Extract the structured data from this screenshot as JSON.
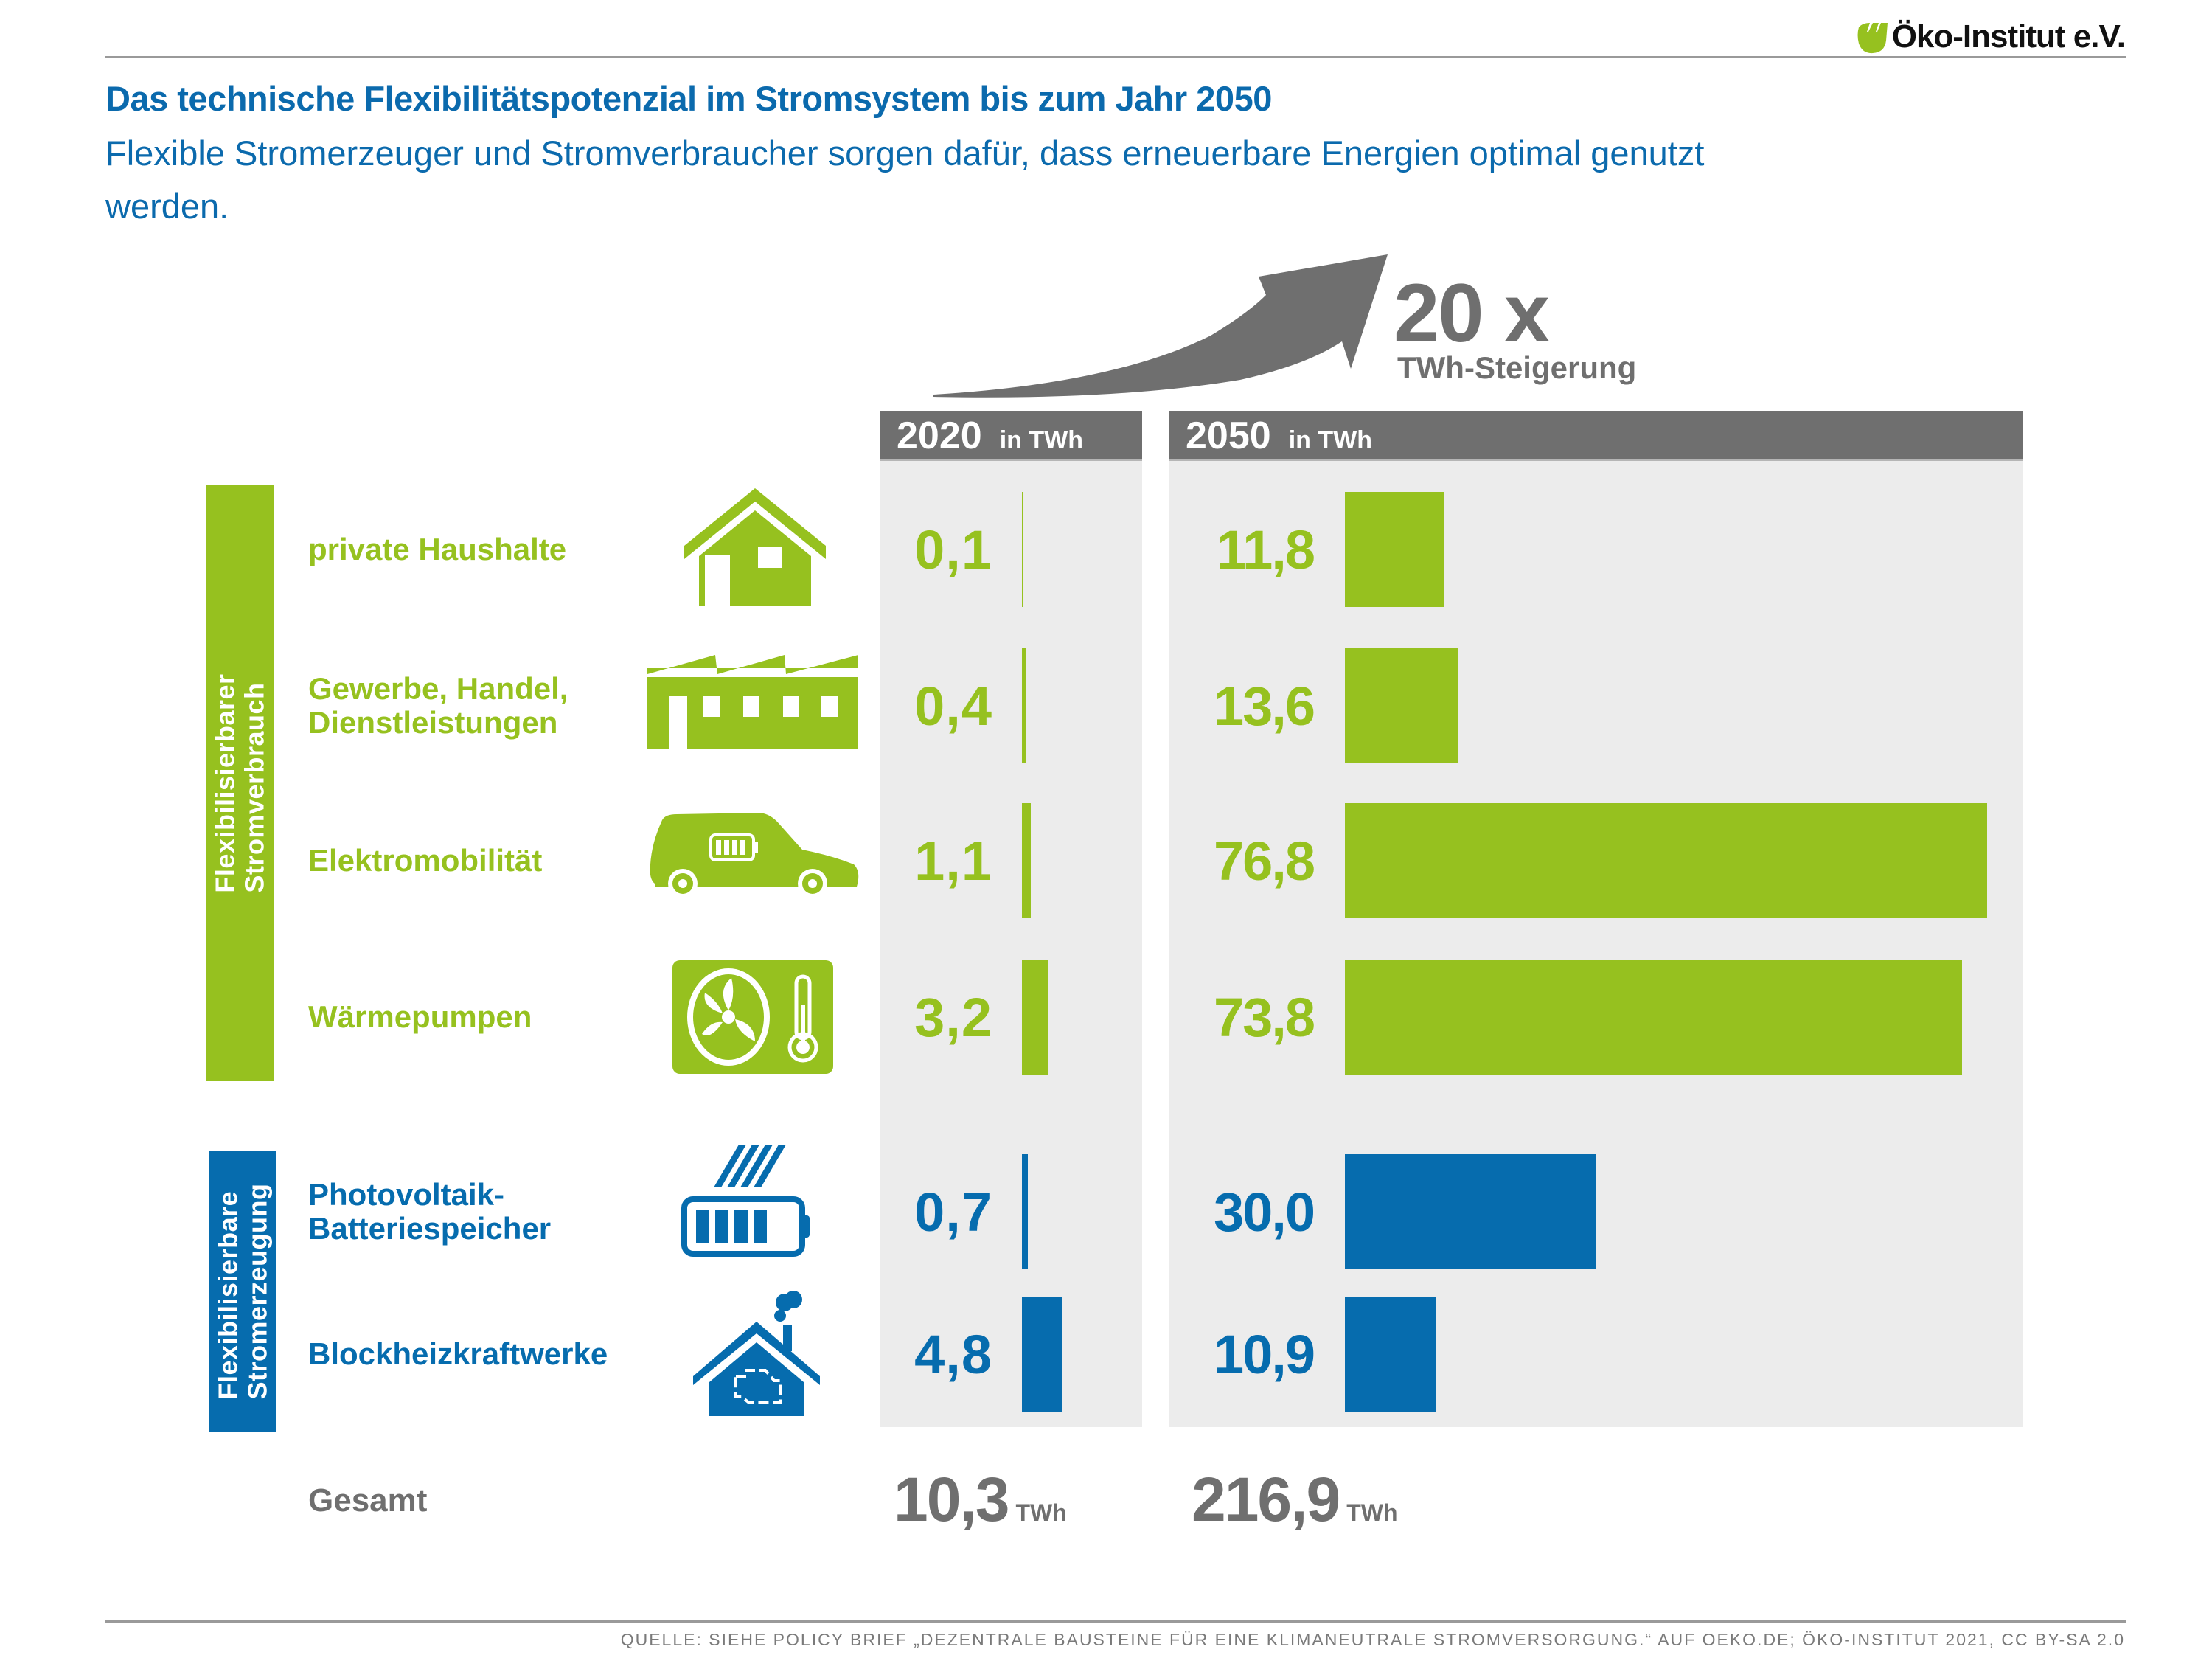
{
  "brand": {
    "logo_text": "Öko-Institut e.V.",
    "logo_color": "#96c11f"
  },
  "header": {
    "title": "Das technische Flexibilitätspotenzial im Stromsystem bis zum Jahr 2050",
    "subtitle": "Flexible Stromerzeuger und Stromverbraucher sorgen dafür, dass erneuerbare Energien optimal genutzt werden."
  },
  "growth": {
    "factor": "20 x",
    "label": "TWh-Steigerung",
    "icon": "curved-arrow-up-icon"
  },
  "columns": [
    {
      "year": "2020",
      "unit": "in TWh"
    },
    {
      "year": "2050",
      "unit": "in TWh"
    }
  ],
  "groups": [
    {
      "label_line1": "Flexibilisierbarer",
      "label_line2": "Stromverbrauch",
      "color": "#96c11f"
    },
    {
      "label_line1": "Flexibilisierbare",
      "label_line2": "Stromerzeugung",
      "color": "#066cae"
    }
  ],
  "colors": {
    "green": "#96c11f",
    "blue": "#066cae",
    "grey": "#6f6f6f",
    "panel": "#ececec"
  },
  "totals": {
    "label": "Gesamt",
    "v2020": "10,3",
    "v2050": "216,9",
    "unit": "TWh"
  },
  "footer": {
    "source": "QUELLE: SIEHE POLICY BRIEF „DEZENTRALE BAUSTEINE FÜR EINE KLIMANEUTRALE STROMVERSORGUNG.“ AUF OEKO.DE; ÖKO-INSTITUT 2021, CC BY-SA 2.0"
  },
  "chart_data": {
    "type": "bar",
    "orientation": "horizontal",
    "title": "Das technische Flexibilitätspotenzial im Stromsystem bis zum Jahr 2050",
    "unit": "TWh",
    "categories": [
      "private Haushalte",
      "Gewerbe, Handel, Dienstleistungen",
      "Elektromobilität",
      "Wärmepumpen",
      "Photovoltaik-Batteriespeicher",
      "Blockheizkraftwerke"
    ],
    "category_lines": [
      [
        "private Haushalte"
      ],
      [
        "Gewerbe, Handel,",
        "Dienstleistungen"
      ],
      [
        "Elektromobilität"
      ],
      [
        "Wärmepumpen"
      ],
      [
        "Photovoltaik-",
        "Batteriespeicher"
      ],
      [
        "Blockheizkraftwerke"
      ]
    ],
    "category_groups": [
      "Flexibilisierbarer Stromverbrauch",
      "Flexibilisierbarer Stromverbrauch",
      "Flexibilisierbarer Stromverbrauch",
      "Flexibilisierbarer Stromverbrauch",
      "Flexibilisierbare Stromerzeugung",
      "Flexibilisierbare Stromerzeugung"
    ],
    "category_icons": [
      "house-icon",
      "factory-icon",
      "electric-car-icon",
      "heat-pump-icon",
      "solar-battery-icon",
      "chp-house-icon"
    ],
    "series": [
      {
        "name": "2020",
        "values": [
          0.1,
          0.4,
          1.1,
          3.2,
          0.7,
          4.8
        ],
        "labels": [
          "0,1",
          "0,4",
          "1,1",
          "3,2",
          "0,7",
          "4,8"
        ]
      },
      {
        "name": "2050",
        "values": [
          11.8,
          13.6,
          76.8,
          73.8,
          30.0,
          10.9
        ],
        "labels": [
          "11,8",
          "13,6",
          "76,8",
          "73,8",
          "30,0",
          "10,9"
        ]
      }
    ],
    "totals": {
      "2020": 10.3,
      "2050": 216.9
    },
    "growth_factor": 20,
    "xlabel": "",
    "ylabel": "",
    "grid": false
  }
}
